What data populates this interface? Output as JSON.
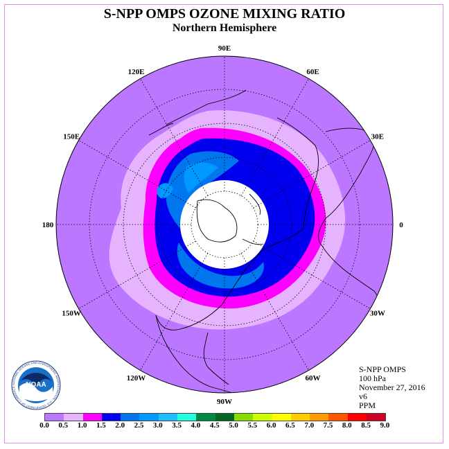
{
  "header": {
    "title": "S-NPP OMPS OZONE MIXING RATIO",
    "subtitle": "Northern Hemisphere"
  },
  "meridian_labels": [
    "90E",
    "60E",
    "30E",
    "0",
    "30W",
    "60W",
    "90W",
    "120W",
    "150W",
    "180",
    "150E",
    "120E"
  ],
  "info": {
    "instrument": "S-NPP OMPS",
    "level": "100 hPa",
    "date": "November 27, 2016",
    "version": "v6",
    "units": "PPM"
  },
  "logo": {
    "text": "NOAA",
    "ring_text": "NATIONAL OCEANIC AND ATMOSPHERIC ADMINISTRATION · U.S. DEPARTMENT OF COMMERCE"
  },
  "colorbar": {
    "ticks": [
      "0.0",
      "0.5",
      "1.0",
      "1.5",
      "2.0",
      "2.5",
      "3.0",
      "3.5",
      "4.0",
      "4.5",
      "5.0",
      "5.5",
      "6.0",
      "6.5",
      "7.0",
      "7.5",
      "8.0",
      "8.5",
      "9.0"
    ],
    "colors": [
      "#bb77ff",
      "#e6b3ff",
      "#ff00ff",
      "#0000ee",
      "#0077ee",
      "#0099ff",
      "#22bbff",
      "#22ffdd",
      "#008844",
      "#006622",
      "#88dd00",
      "#ccff00",
      "#ffff00",
      "#ffcc00",
      "#ff9900",
      "#ff5500",
      "#ff0000",
      "#cc0022"
    ]
  },
  "map_colors": {
    "ocean_background": "#bb77ff",
    "band_0_5": "#e6b3ff",
    "band_1_0": "#ff00ff",
    "band_1_5": "#0000ee",
    "band_2_0": "#0077ee",
    "band_2_5": "#0099ff",
    "no_data": "#ffffff"
  }
}
